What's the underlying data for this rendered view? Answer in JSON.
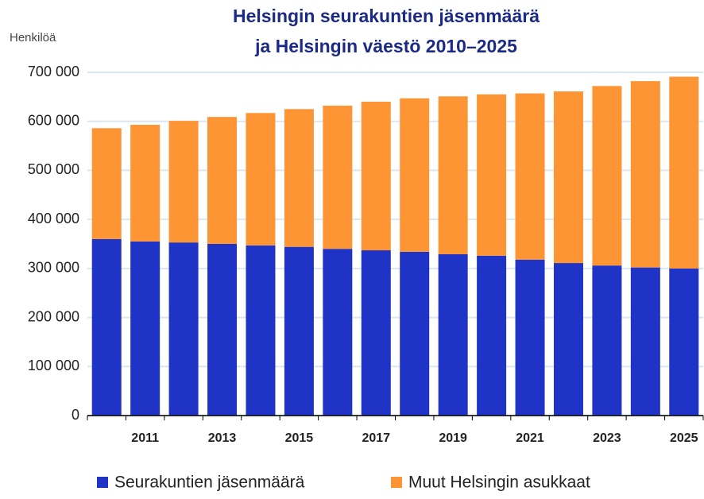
{
  "chart_data": {
    "type": "stacked_bar",
    "title": [
      "Helsingin seurakuntien jäsenmäärä",
      "ja Helsingin väestö 2010–2025"
    ],
    "y_label": "Henkilöä",
    "categories": [
      null,
      "2011",
      null,
      "2013",
      null,
      "2015",
      null,
      "2017",
      null,
      "2019",
      null,
      "2021",
      null,
      "2023",
      null,
      "2025"
    ],
    "series": [
      {
        "name": "Seurakuntien jäsenmäärä",
        "color": "#1f34c6",
        "values": [
          360000,
          355000,
          353000,
          350000,
          347000,
          344000,
          340000,
          337000,
          334000,
          329000,
          326000,
          318000,
          311000,
          306000,
          302000,
          300000
        ]
      },
      {
        "name": "Muut Helsingin asukkaat",
        "color": "#fd9535",
        "values": [
          226000,
          238000,
          248000,
          259000,
          270000,
          281000,
          292000,
          303000,
          313000,
          322000,
          329000,
          339000,
          350000,
          366000,
          380000,
          391000
        ]
      }
    ],
    "ylim": [
      0,
      700000
    ],
    "yticks": [
      0,
      {
        "value": 100000,
        "label": "100 000"
      },
      {
        "value": 200000,
        "label": "200 000"
      },
      {
        "value": 300000,
        "label": "300 000"
      },
      {
        "value": 400000,
        "label": "400 000"
      },
      {
        "value": 500000,
        "label": "500 000"
      },
      {
        "value": 600000,
        "label": "600 000"
      },
      {
        "value": 700000,
        "label": "700 000"
      }
    ],
    "grid": true,
    "legend": "bottom"
  }
}
